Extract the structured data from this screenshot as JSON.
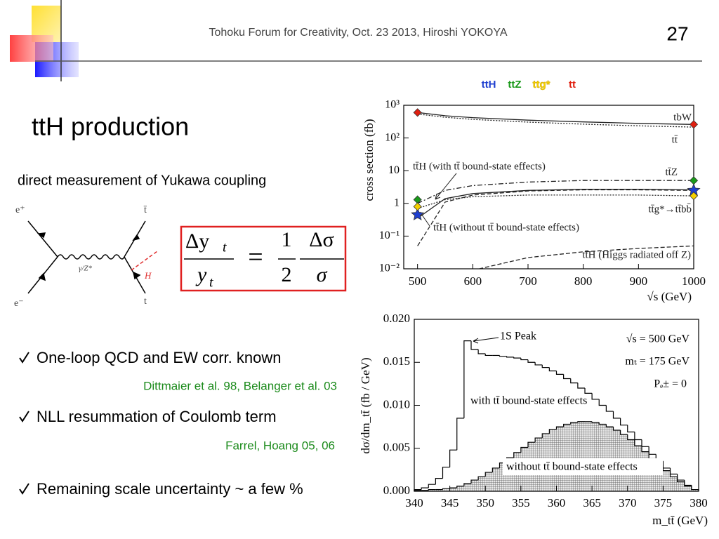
{
  "header": {
    "text": "Tohoku Forum for Creativity, Oct. 23 2013, Hiroshi YOKOYA",
    "page_number": "27"
  },
  "title": "ttH production",
  "subtitle": "direct measurement of Yukawa coupling",
  "diagram": {
    "e_plus": "e⁺",
    "e_minus": "e⁻",
    "t_bar": "t̄",
    "t": "t",
    "higgs": "H",
    "boson": "γ/Z*"
  },
  "formula": {
    "lhs_numerator": "Δy",
    "lhs_numerator_sub": "t",
    "lhs_denominator": "y",
    "lhs_denominator_sub": "t",
    "equals": "=",
    "coef_numerator": "1",
    "coef_denominator": "2",
    "rhs_numerator": "Δσ",
    "rhs_denominator": "σ"
  },
  "bullets": [
    {
      "text": "One-loop QCD and EW corr. known",
      "citation": "Dittmaier et al. 98, Belanger et al. 03"
    },
    {
      "text": "NLL resummation of Coulomb term",
      "citation": "Farrel, Hoang 05, 06"
    },
    {
      "text": "Remaining scale uncertainty ~ a few %"
    }
  ],
  "chart_data": [
    {
      "type": "line",
      "xlabel": "√s (GeV)",
      "ylabel": "cross section (fb)",
      "log_y": true,
      "xlim": [
        475,
        1000
      ],
      "ylim": [
        0.01,
        1000
      ],
      "xticks": [
        500,
        600,
        700,
        800,
        900,
        1000
      ],
      "yticks": [
        {
          "value": 0.01,
          "label": "10⁻²"
        },
        {
          "value": 0.1,
          "label": "10⁻¹"
        },
        1,
        10,
        {
          "value": 100,
          "label": "10²"
        },
        {
          "value": 1000,
          "label": "10³"
        }
      ],
      "x": [
        500,
        550,
        600,
        700,
        800,
        900,
        1000
      ],
      "curves": [
        {
          "name": "tbW",
          "style": "solid",
          "values": [
            600,
            480,
            420,
            350,
            310,
            280,
            260
          ]
        },
        {
          "name": "tt̄",
          "style": "dotted",
          "values": [
            540,
            430,
            370,
            305,
            265,
            235,
            215
          ]
        },
        {
          "name": "tt̄Z",
          "style": "dashdot",
          "values": [
            1.0,
            2.5,
            3.5,
            4.5,
            5,
            5,
            5
          ]
        },
        {
          "name": "tt̄g*→tt̄bb̄",
          "style": "dotted",
          "values": [
            0.7,
            1.3,
            1.6,
            1.8,
            1.8,
            1.8,
            1.7
          ]
        },
        {
          "name": "tt̄H (with tt̄ bound-state effects)",
          "style": "solid",
          "values": [
            0.35,
            1.4,
            2.0,
            2.5,
            2.7,
            2.7,
            2.6
          ]
        },
        {
          "name": "tt̄H (without tt̄ bound-state effects)",
          "style": "dashed",
          "values": [
            0.05,
            1.1,
            1.8,
            2.4,
            2.6,
            2.6,
            2.5
          ]
        },
        {
          "name": "tt̄H (Higgs radiated off Z)",
          "style": "dashed",
          "values": [
            null,
            null,
            0.009,
            0.022,
            0.033,
            0.042,
            0.05
          ]
        }
      ],
      "series": [
        {
          "name": "ttH",
          "color": "#1f3fd0",
          "marker": "star",
          "x": [
            500,
            1000
          ],
          "values": [
            0.45,
            2.5
          ]
        },
        {
          "name": "ttZ",
          "color": "#1a9a1a",
          "marker": "diamond",
          "x": [
            500,
            1000
          ],
          "values": [
            1.3,
            5
          ]
        },
        {
          "name": "ttg*",
          "color": "#f5d000",
          "marker": "diamond",
          "x": [
            500,
            1000
          ],
          "values": [
            0.8,
            1.7
          ]
        },
        {
          "name": "tt",
          "color": "#e02010",
          "marker": "diamond",
          "x": [
            500,
            1000
          ],
          "values": [
            600,
            260
          ]
        }
      ]
    },
    {
      "type": "histogram",
      "xlabel": "m_tt̄ (GeV)",
      "ylabel": "dσ/dm_tt̄ (fb / GeV)",
      "xlim": [
        340,
        380
      ],
      "ylim": [
        0,
        0.02
      ],
      "xticks": [
        340,
        345,
        350,
        355,
        360,
        365,
        370,
        375,
        380
      ],
      "yticks": [
        {
          "value": 0,
          "label": "0.000"
        },
        {
          "value": 0.005,
          "label": "0.005"
        },
        {
          "value": 0.01,
          "label": "0.010"
        },
        {
          "value": 0.015,
          "label": "0.015"
        },
        {
          "value": 0.02,
          "label": "0.020"
        }
      ],
      "bins": [
        340,
        341,
        342,
        343,
        344,
        345,
        346,
        347,
        348,
        349,
        350,
        351,
        352,
        353,
        354,
        355,
        356,
        357,
        358,
        359,
        360,
        361,
        362,
        363,
        364,
        365,
        366,
        367,
        368,
        369,
        370,
        371,
        372,
        373,
        374,
        375,
        376,
        377,
        378,
        379,
        380
      ],
      "annotations": [
        "1S Peak",
        "√s = 500 GeV",
        "mₜ = 175 GeV",
        "Pₑ± = 0",
        "with tt̄ bound-state effects",
        "without tt̄ bound-state effects"
      ],
      "series": [
        {
          "color": "#000000",
          "pattern": "none",
          "values": [
            0.0002,
            0.0004,
            0.0008,
            0.0015,
            0.0028,
            0.0048,
            0.0085,
            0.0175,
            0.0165,
            0.016,
            0.0158,
            0.0158,
            0.0157,
            0.0156,
            0.0155,
            0.0153,
            0.015,
            0.0147,
            0.0144,
            0.014,
            0.0136,
            0.0131,
            0.0126,
            0.012,
            0.0114,
            0.0107,
            0.01,
            0.0093,
            0.0085,
            0.0077,
            0.0069,
            0.006,
            0.0052,
            0.0043,
            0.0035,
            0.0027,
            0.002,
            0.0013,
            0.0007,
            0.0002
          ]
        },
        {
          "color": "#000000",
          "pattern": "crosshatch",
          "values": [
            0.0001,
            0.0001,
            0.0002,
            0.0002,
            0.0003,
            0.0004,
            0.0006,
            0.0009,
            0.0013,
            0.0017,
            0.0022,
            0.0027,
            0.0033,
            0.0039,
            0.0045,
            0.0051,
            0.0057,
            0.0062,
            0.0067,
            0.0072,
            0.0075,
            0.0078,
            0.008,
            0.0081,
            0.0081,
            0.008,
            0.0078,
            0.0075,
            0.0071,
            0.0066,
            0.006,
            0.0053,
            0.0046,
            0.0038,
            0.0031,
            0.0024,
            0.0017,
            0.0011,
            0.0006,
            0.0002
          ]
        }
      ]
    }
  ]
}
